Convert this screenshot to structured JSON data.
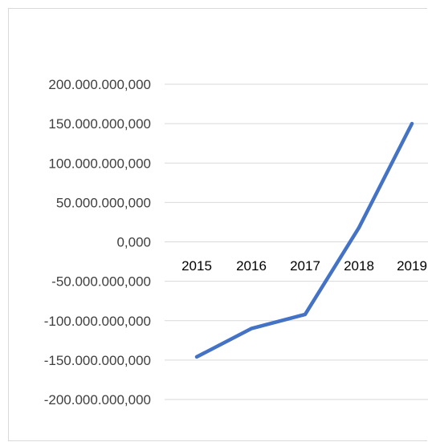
{
  "chart_data": {
    "type": "line",
    "title": "",
    "xlabel": "",
    "ylabel": "",
    "categories": [
      "2015",
      "2016",
      "2017",
      "2018",
      "2019"
    ],
    "series": [
      {
        "values": [
          -146000000000,
          -110000000000,
          -92000000000,
          18000000000,
          150000000000
        ],
        "color": "#4472c4"
      }
    ],
    "ylim": [
      -200000000000,
      200000000000
    ],
    "y_tick_labels": [
      "200.000.000,000",
      "150.000.000,000",
      "100.000.000,000",
      "50.000.000,000",
      "0,000",
      "-50.000.000,000",
      "-100.000.000,000",
      "-150.000.000,000",
      "-200.000.000,000"
    ],
    "y_tick_values": [
      200000000000,
      150000000000,
      100000000000,
      50000000000,
      0,
      -50000000000,
      -100000000000,
      -150000000000,
      -200000000000
    ],
    "grid": true,
    "legend": "none",
    "gridline_color": "#d9d9d9"
  }
}
